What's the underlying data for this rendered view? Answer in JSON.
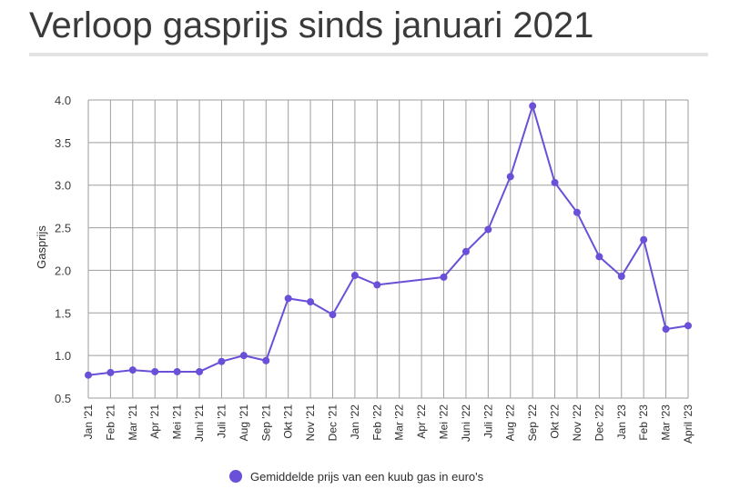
{
  "page": {
    "title": "Verloop gasprijs sinds januari 2021"
  },
  "chart_data": {
    "type": "line",
    "title": "Verloop gasprijs sinds januari 2021",
    "xlabel": "",
    "ylabel": "Gasprijs",
    "ylim": [
      0.5,
      4.0
    ],
    "yticks": [
      "0.5",
      "1.0",
      "1.5",
      "2.0",
      "2.5",
      "3.0",
      "3.5",
      "4.0"
    ],
    "grid": true,
    "legend_placement": "bottom",
    "colors": {
      "series": "#6a4fd8",
      "grid": "#9e9e9e"
    },
    "x": [
      "Jan '21",
      "Feb '21",
      "Mar '21",
      "Apr '21",
      "Mei '21",
      "Juni '21",
      "Juli '21",
      "Aug '21",
      "Sep '21",
      "Okt '21",
      "Nov '21",
      "Dec '21",
      "Jan '22",
      "Feb '22",
      "Mar '22",
      "Apr '22",
      "Mei '22",
      "Juni '22",
      "Juli '22",
      "Aug '22",
      "Sep '22",
      "Okt '22",
      "Nov '22",
      "Dec '22",
      "Jan '23",
      "Feb '23",
      "Mar '23",
      "April '23"
    ],
    "series": [
      {
        "name": "Gemiddelde prijs van een kuub gas in euro's",
        "values": [
          0.77,
          0.8,
          0.83,
          0.81,
          0.81,
          0.81,
          0.93,
          1.0,
          0.94,
          1.67,
          1.63,
          1.48,
          1.94,
          1.83,
          null,
          null,
          1.92,
          2.22,
          2.48,
          3.1,
          3.93,
          3.03,
          2.68,
          2.16,
          1.93,
          2.36,
          1.31,
          1.35
        ]
      }
    ]
  }
}
